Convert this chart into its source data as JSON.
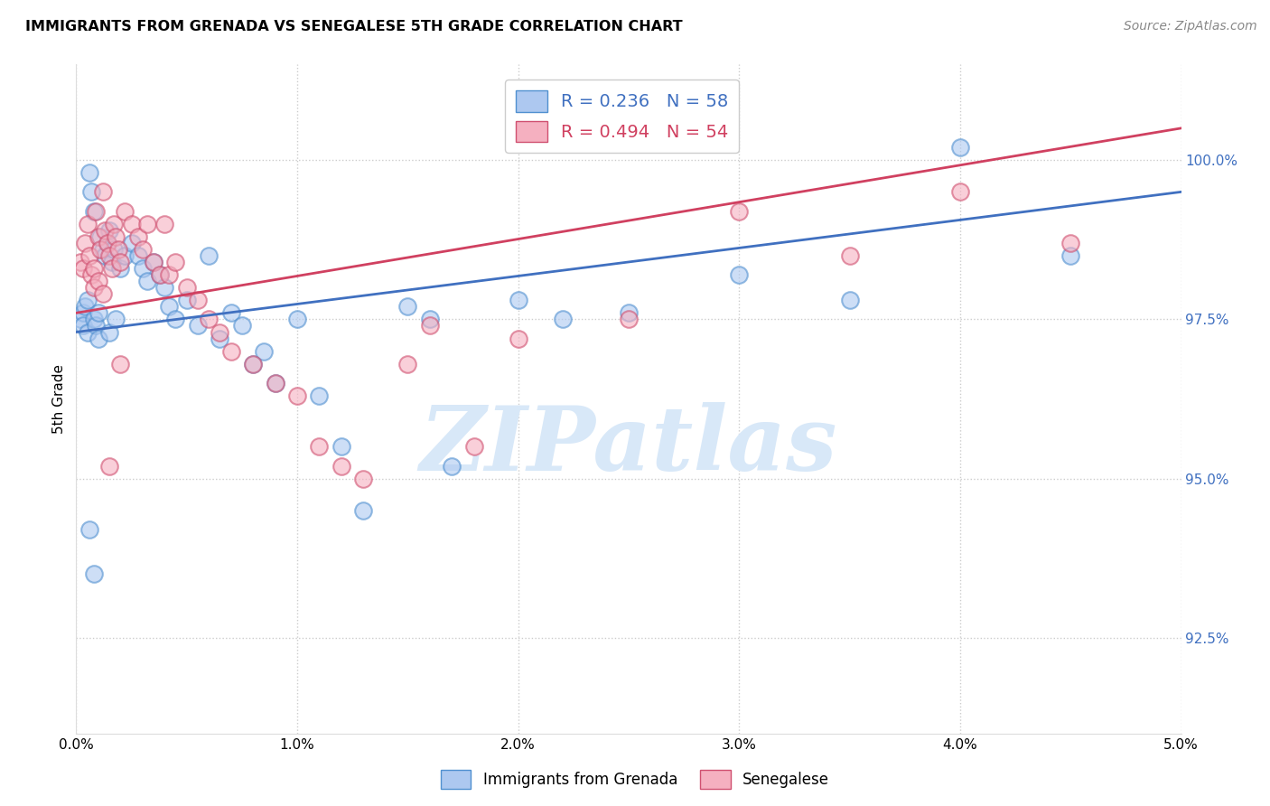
{
  "title": "IMMIGRANTS FROM GRENADA VS SENEGALESE 5TH GRADE CORRELATION CHART",
  "source": "Source: ZipAtlas.com",
  "ylabel": "5th Grade",
  "xmin": 0.0,
  "xmax": 5.0,
  "ymin": 91.0,
  "ymax": 101.5,
  "yticks": [
    92.5,
    95.0,
    97.5,
    100.0
  ],
  "ytick_labels": [
    "92.5%",
    "95.0%",
    "97.5%",
    "100.0%"
  ],
  "xticks": [
    0.0,
    1.0,
    2.0,
    3.0,
    4.0,
    5.0
  ],
  "xtick_labels": [
    "0.0%",
    "1.0%",
    "2.0%",
    "3.0%",
    "4.0%",
    "5.0%"
  ],
  "blue_fill": "#adc8f0",
  "blue_edge": "#5090d0",
  "pink_fill": "#f5b0c0",
  "pink_edge": "#d05070",
  "blue_line_color": "#4070c0",
  "pink_line_color": "#d04060",
  "legend_blue_R": "R = 0.236",
  "legend_blue_N": "N = 58",
  "legend_pink_R": "R = 0.494",
  "legend_pink_N": "N = 54",
  "watermark_text": "ZIPatlas",
  "watermark_color": "#d8e8f8",
  "legend_label_blue": "Immigrants from Grenada",
  "legend_label_pink": "Senegalese",
  "blue_line_x0": 0.0,
  "blue_line_y0": 97.3,
  "blue_line_x1": 5.0,
  "blue_line_y1": 99.5,
  "pink_line_x0": 0.0,
  "pink_line_y0": 97.6,
  "pink_line_x1": 5.0,
  "pink_line_y1": 100.5,
  "blue_x": [
    0.02,
    0.03,
    0.03,
    0.04,
    0.05,
    0.05,
    0.06,
    0.07,
    0.08,
    0.08,
    0.09,
    0.1,
    0.1,
    0.11,
    0.12,
    0.13,
    0.14,
    0.15,
    0.15,
    0.16,
    0.17,
    0.18,
    0.2,
    0.22,
    0.25,
    0.28,
    0.3,
    0.32,
    0.35,
    0.38,
    0.4,
    0.42,
    0.45,
    0.5,
    0.55,
    0.6,
    0.65,
    0.7,
    0.75,
    0.8,
    0.85,
    0.9,
    1.0,
    1.1,
    1.2,
    1.3,
    1.5,
    1.6,
    1.7,
    2.0,
    2.2,
    2.5,
    3.0,
    3.5,
    4.0,
    4.5,
    0.06,
    0.08
  ],
  "blue_y": [
    97.5,
    97.6,
    97.4,
    97.7,
    97.8,
    97.3,
    99.8,
    99.5,
    99.2,
    97.5,
    97.4,
    97.6,
    97.2,
    98.8,
    98.6,
    98.5,
    98.7,
    98.9,
    97.3,
    98.4,
    98.6,
    97.5,
    98.3,
    98.5,
    98.7,
    98.5,
    98.3,
    98.1,
    98.4,
    98.2,
    98.0,
    97.7,
    97.5,
    97.8,
    97.4,
    98.5,
    97.2,
    97.6,
    97.4,
    96.8,
    97.0,
    96.5,
    97.5,
    96.3,
    95.5,
    94.5,
    97.7,
    97.5,
    95.2,
    97.8,
    97.5,
    97.6,
    98.2,
    97.8,
    100.2,
    98.5,
    94.2,
    93.5
  ],
  "pink_x": [
    0.02,
    0.03,
    0.04,
    0.05,
    0.06,
    0.07,
    0.08,
    0.09,
    0.1,
    0.11,
    0.12,
    0.13,
    0.14,
    0.15,
    0.16,
    0.17,
    0.18,
    0.19,
    0.2,
    0.22,
    0.25,
    0.28,
    0.3,
    0.32,
    0.35,
    0.38,
    0.4,
    0.42,
    0.45,
    0.5,
    0.55,
    0.6,
    0.65,
    0.7,
    0.8,
    0.9,
    1.0,
    1.1,
    1.2,
    1.3,
    1.5,
    1.6,
    1.8,
    2.0,
    2.5,
    3.0,
    3.5,
    4.0,
    4.5,
    0.08,
    0.1,
    0.12,
    0.15,
    0.2
  ],
  "pink_y": [
    98.4,
    98.3,
    98.7,
    99.0,
    98.5,
    98.2,
    98.0,
    99.2,
    98.8,
    98.6,
    99.5,
    98.9,
    98.7,
    98.5,
    98.3,
    99.0,
    98.8,
    98.6,
    98.4,
    99.2,
    99.0,
    98.8,
    98.6,
    99.0,
    98.4,
    98.2,
    99.0,
    98.2,
    98.4,
    98.0,
    97.8,
    97.5,
    97.3,
    97.0,
    96.8,
    96.5,
    96.3,
    95.5,
    95.2,
    95.0,
    96.8,
    97.4,
    95.5,
    97.2,
    97.5,
    99.2,
    98.5,
    99.5,
    98.7,
    98.3,
    98.1,
    97.9,
    95.2,
    96.8
  ]
}
